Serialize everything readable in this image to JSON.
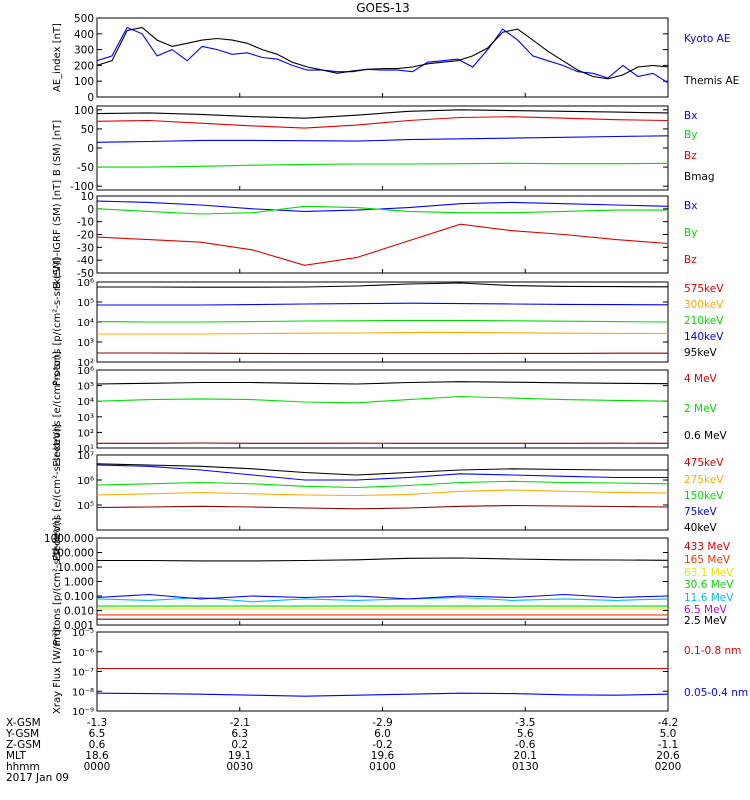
{
  "title": "GOES-13",
  "colors": {
    "black": "#000000",
    "blue": "#0000ff",
    "red": "#e00000",
    "green": "#00dd00",
    "orange": "#ffaa00",
    "yellow": "#e6e600",
    "cyan": "#00bbff",
    "darkred": "#8b0000",
    "purple": "#cc00cc",
    "brown": "#ff3300"
  },
  "footer": {
    "rows": [
      {
        "label": "X-GSM",
        "values": [
          "-1.3",
          "-2.1",
          "-2.9",
          "-3.5",
          "-4.2"
        ]
      },
      {
        "label": "Y-GSM",
        "values": [
          "6.5",
          "6.3",
          "6.0",
          "5.6",
          "5.0"
        ]
      },
      {
        "label": "Z-GSM",
        "values": [
          "0.6",
          "0.2",
          "-0.2",
          "-0.6",
          "-1.1"
        ]
      },
      {
        "label": "MLT",
        "values": [
          "18.6",
          "19.1",
          "19.6",
          "20.1",
          "20.6"
        ]
      },
      {
        "label": "hhmm",
        "values": [
          "0000",
          "0030",
          "0100",
          "0130",
          "0200"
        ]
      }
    ],
    "date": "2017 Jan 09"
  },
  "chart_data": [
    {
      "type": "line",
      "panel": "ae",
      "ylabel": "AE_index [nT]",
      "scale": "linear",
      "ylim": [
        0,
        500
      ],
      "yticks": [
        "0",
        "100",
        "200",
        "300",
        "400",
        "500"
      ],
      "series": [
        {
          "name": "Kyoto AE",
          "color": "#0000ff",
          "values": [
            230,
            260,
            440,
            400,
            260,
            300,
            230,
            320,
            300,
            270,
            280,
            250,
            240,
            200,
            170,
            170,
            160,
            160,
            175,
            170,
            170,
            160,
            220,
            230,
            240,
            190,
            300,
            430,
            360,
            260,
            230,
            200,
            160,
            150,
            120,
            200,
            130,
            150,
            90
          ]
        },
        {
          "name": "Themis AE",
          "color": "#000000",
          "values": [
            200,
            230,
            420,
            440,
            360,
            320,
            340,
            360,
            370,
            360,
            340,
            300,
            270,
            220,
            190,
            170,
            150,
            165,
            175,
            180,
            180,
            190,
            210,
            220,
            230,
            260,
            310,
            410,
            430,
            360,
            290,
            230,
            170,
            130,
            115,
            140,
            190,
            200,
            190
          ]
        }
      ]
    },
    {
      "type": "line",
      "panel": "b_sm",
      "ylabel": "B (SM) [nT]",
      "scale": "linear",
      "ylim": [
        -110,
        110
      ],
      "yticks": [
        "-100",
        "-50",
        "0",
        "50",
        "100"
      ],
      "series": [
        {
          "name": "Bx",
          "color": "#0000ff",
          "values": [
            15,
            17,
            20,
            20,
            19,
            18,
            22,
            24,
            26,
            28,
            30,
            32
          ]
        },
        {
          "name": "By",
          "color": "#00dd00",
          "values": [
            -50,
            -50,
            -48,
            -45,
            -43,
            -42,
            -42,
            -41,
            -40,
            -41,
            -41,
            -40
          ]
        },
        {
          "name": "Bz",
          "color": "#e00000",
          "values": [
            70,
            72,
            65,
            58,
            52,
            60,
            72,
            80,
            82,
            78,
            74,
            72
          ]
        },
        {
          "name": "Bmag",
          "color": "#000000",
          "values": [
            90,
            92,
            88,
            82,
            78,
            86,
            96,
            100,
            98,
            96,
            94,
            92
          ]
        }
      ]
    },
    {
      "type": "line",
      "panel": "b_igrf",
      "ylabel": "B (SM)-IGRF (SM) [nT]",
      "scale": "linear",
      "ylim": [
        -50,
        10
      ],
      "yticks": [
        "-50",
        "-40",
        "-30",
        "-20",
        "-10",
        "0",
        "10"
      ],
      "series": [
        {
          "name": "Bx",
          "color": "#0000ff",
          "values": [
            6,
            5,
            3,
            0,
            -2,
            -1,
            1,
            4,
            5,
            4,
            3,
            2
          ]
        },
        {
          "name": "By",
          "color": "#00dd00",
          "values": [
            0,
            -2,
            -4,
            -3,
            2,
            1,
            -2,
            -3,
            -3,
            -2,
            -1,
            -1
          ]
        },
        {
          "name": "Bz",
          "color": "#e00000",
          "values": [
            -22,
            -24,
            -26,
            -32,
            -44,
            -38,
            -25,
            -12,
            -17,
            -20,
            -24,
            -27
          ]
        }
      ]
    },
    {
      "type": "line",
      "panel": "protons_low",
      "ylabel": "Protons [p/(cm²-s-sr-keV)]",
      "scale": "log",
      "ylim_log": [
        2,
        6
      ],
      "ytick_exponents": [
        2,
        3,
        4,
        5,
        6
      ],
      "series": [
        {
          "name": "575keV",
          "color": "#8b0000",
          "log10_values": [
            2.45,
            2.45,
            2.44,
            2.43,
            2.42,
            2.42,
            2.42,
            2.42,
            2.43,
            2.43,
            2.44,
            2.44
          ]
        },
        {
          "name": "300keV",
          "color": "#ffaa00",
          "log10_values": [
            3.4,
            3.4,
            3.4,
            3.42,
            3.44,
            3.45,
            3.47,
            3.48,
            3.46,
            3.44,
            3.43,
            3.42
          ]
        },
        {
          "name": "210keV",
          "color": "#00dd00",
          "log10_values": [
            4.02,
            4.0,
            4.0,
            4.02,
            4.05,
            4.06,
            4.08,
            4.08,
            4.06,
            4.04,
            4.02,
            4.0
          ]
        },
        {
          "name": "140keV",
          "color": "#0000ff",
          "log10_values": [
            4.85,
            4.85,
            4.85,
            4.87,
            4.9,
            4.92,
            4.94,
            4.92,
            4.9,
            4.88,
            4.87,
            4.86
          ]
        },
        {
          "name": "95keV",
          "color": "#000000",
          "log10_values": [
            5.75,
            5.75,
            5.74,
            5.74,
            5.75,
            5.8,
            5.9,
            5.95,
            5.82,
            5.78,
            5.77,
            5.76
          ]
        }
      ],
      "legend_order": [
        "575keV",
        "300keV",
        "210keV",
        "140keV",
        "95keV"
      ],
      "legend_colors": [
        "#e00000",
        "#ffaa00",
        "#00dd00",
        "#0000ff",
        "#000000"
      ]
    },
    {
      "type": "line",
      "panel": "electrons_mev",
      "ylabel": "Electrons [e/(cm²-s-sr)]",
      "scale": "log",
      "ylim_log": [
        1,
        6
      ],
      "ytick_exponents": [
        1,
        2,
        3,
        4,
        5,
        6
      ],
      "series": [
        {
          "name": "4 MeV",
          "color": "#8b0000",
          "log10_values": [
            1.3,
            1.3,
            1.32,
            1.3,
            1.3,
            1.31,
            1.3,
            1.3,
            1.3,
            1.3,
            1.31,
            1.3
          ]
        },
        {
          "name": "2 MeV",
          "color": "#00dd00",
          "log10_values": [
            4.0,
            4.1,
            4.15,
            4.1,
            3.95,
            3.9,
            4.1,
            4.3,
            4.2,
            4.1,
            4.05,
            4.0
          ]
        },
        {
          "name": "0.6 MeV",
          "color": "#000000",
          "log10_values": [
            5.1,
            5.15,
            5.2,
            5.2,
            5.15,
            5.1,
            5.2,
            5.25,
            5.22,
            5.18,
            5.15,
            5.12
          ]
        }
      ],
      "legend_colors": [
        "#e00000",
        "#00dd00",
        "#000000"
      ]
    },
    {
      "type": "line",
      "panel": "electrons_kev",
      "ylabel": "Electrons [e/(cm²-s-sr-keV)]",
      "scale": "log",
      "ylim_log": [
        4,
        7
      ],
      "ytick_exponents": [
        5,
        6,
        7
      ],
      "series": [
        {
          "name": "475keV",
          "color": "#8b0000",
          "log10_values": [
            4.9,
            4.92,
            4.95,
            4.92,
            4.88,
            4.85,
            4.88,
            4.95,
            4.98,
            4.96,
            4.94,
            4.92
          ]
        },
        {
          "name": "275keV",
          "color": "#ffaa00",
          "log10_values": [
            5.4,
            5.45,
            5.5,
            5.45,
            5.4,
            5.38,
            5.42,
            5.55,
            5.6,
            5.55,
            5.5,
            5.48
          ]
        },
        {
          "name": "150keV",
          "color": "#00dd00",
          "log10_values": [
            5.8,
            5.85,
            5.9,
            5.85,
            5.75,
            5.7,
            5.78,
            5.9,
            5.95,
            5.9,
            5.88,
            5.85
          ]
        },
        {
          "name": "75keV",
          "color": "#0000ff",
          "log10_values": [
            6.6,
            6.55,
            6.4,
            6.2,
            6.0,
            6.0,
            6.1,
            6.25,
            6.2,
            6.15,
            6.1,
            6.1
          ]
        },
        {
          "name": "40keV",
          "color": "#000000",
          "log10_values": [
            6.65,
            6.6,
            6.55,
            6.45,
            6.3,
            6.2,
            6.3,
            6.4,
            6.45,
            6.42,
            6.4,
            6.4
          ]
        }
      ],
      "legend_colors": [
        "#e00000",
        "#ffaa00",
        "#00dd00",
        "#0000ff",
        "#000000"
      ]
    },
    {
      "type": "line",
      "panel": "protons_mev",
      "ylabel": "Protons [p/(cm²-s-sr-keV)]",
      "scale": "log",
      "ylim_log": [
        -3,
        3
      ],
      "yticks": [
        "0.001",
        "0.010",
        "0.100",
        "1.000",
        "10.000",
        "100.000",
        "1000.000"
      ],
      "series": [
        {
          "name": "433 MeV",
          "color": "#8b0000",
          "log10_values": [
            -2.6,
            -2.6,
            -2.6,
            -2.6,
            -2.6,
            -2.6,
            -2.6,
            -2.6,
            -2.6,
            -2.6,
            -2.6,
            -2.6
          ]
        },
        {
          "name": "165 MeV",
          "color": "#ff3300",
          "log10_values": [
            -2.3,
            -2.3,
            -2.3,
            -2.3,
            -2.3,
            -2.3,
            -2.3,
            -2.3,
            -2.3,
            -2.3,
            -2.3,
            -2.3
          ]
        },
        {
          "name": "63.1 MeV",
          "color": "#e6e600",
          "log10_values": [
            -1.9,
            -1.9,
            -1.9,
            -1.9,
            -1.9,
            -1.9,
            -1.9,
            -1.9,
            -1.9,
            -1.9,
            -1.9,
            -1.9
          ]
        },
        {
          "name": "30.6 MeV",
          "color": "#00dd00",
          "log10_values": [
            -1.7,
            -1.7,
            -1.7,
            -1.7,
            -1.7,
            -1.7,
            -1.7,
            -1.7,
            -1.7,
            -1.7,
            -1.7,
            -1.7
          ]
        },
        {
          "name": "11.6 MeV",
          "color": "#00bbff",
          "log10_values": [
            -1.2,
            -1.3,
            -1.1,
            -1.4,
            -1.2,
            -1.3,
            -1.2,
            -1.1,
            -1.3,
            -1.2,
            -1.3,
            -1.2
          ]
        },
        {
          "name": "6.5 MeV",
          "color": "#0000ff",
          "log10_values": [
            -1.1,
            -0.9,
            -1.2,
            -1.0,
            -1.1,
            -1.0,
            -1.2,
            -1.0,
            -1.1,
            -0.9,
            -1.1,
            -1.0
          ]
        },
        {
          "name": "2.5 MeV",
          "color": "#000000",
          "log10_values": [
            1.45,
            1.45,
            1.42,
            1.42,
            1.45,
            1.5,
            1.6,
            1.62,
            1.55,
            1.5,
            1.48,
            1.46
          ]
        }
      ],
      "legend_colors": [
        "#e00000",
        "#ff3300",
        "#e6e600",
        "#00dd00",
        "#00bbff",
        "#cc00cc",
        "#000000"
      ]
    },
    {
      "type": "line",
      "panel": "xray",
      "ylabel": "Xray Flux [W/m²]",
      "scale": "log",
      "ylim_log": [
        -9,
        -5
      ],
      "ytick_exponents": [
        -9,
        -8,
        -7,
        -6,
        -5
      ],
      "ytick_display": [
        "10⁻⁹",
        "10⁻⁸",
        "10⁻⁷",
        "10⁻⁶",
        "10⁻⁵"
      ],
      "series": [
        {
          "name": "0.1-0.8 nm",
          "color": "#e00000",
          "log10_values": [
            -6.85,
            -6.85,
            -6.85,
            -6.85,
            -6.85,
            -6.85,
            -6.85,
            -6.85,
            -6.85,
            -6.85,
            -6.85,
            -6.85
          ]
        },
        {
          "name": "0.05-0.4 nm",
          "color": "#0000ff",
          "log10_values": [
            -8.1,
            -8.12,
            -8.15,
            -8.2,
            -8.25,
            -8.2,
            -8.15,
            -8.1,
            -8.12,
            -8.18,
            -8.2,
            -8.15
          ]
        }
      ]
    }
  ]
}
